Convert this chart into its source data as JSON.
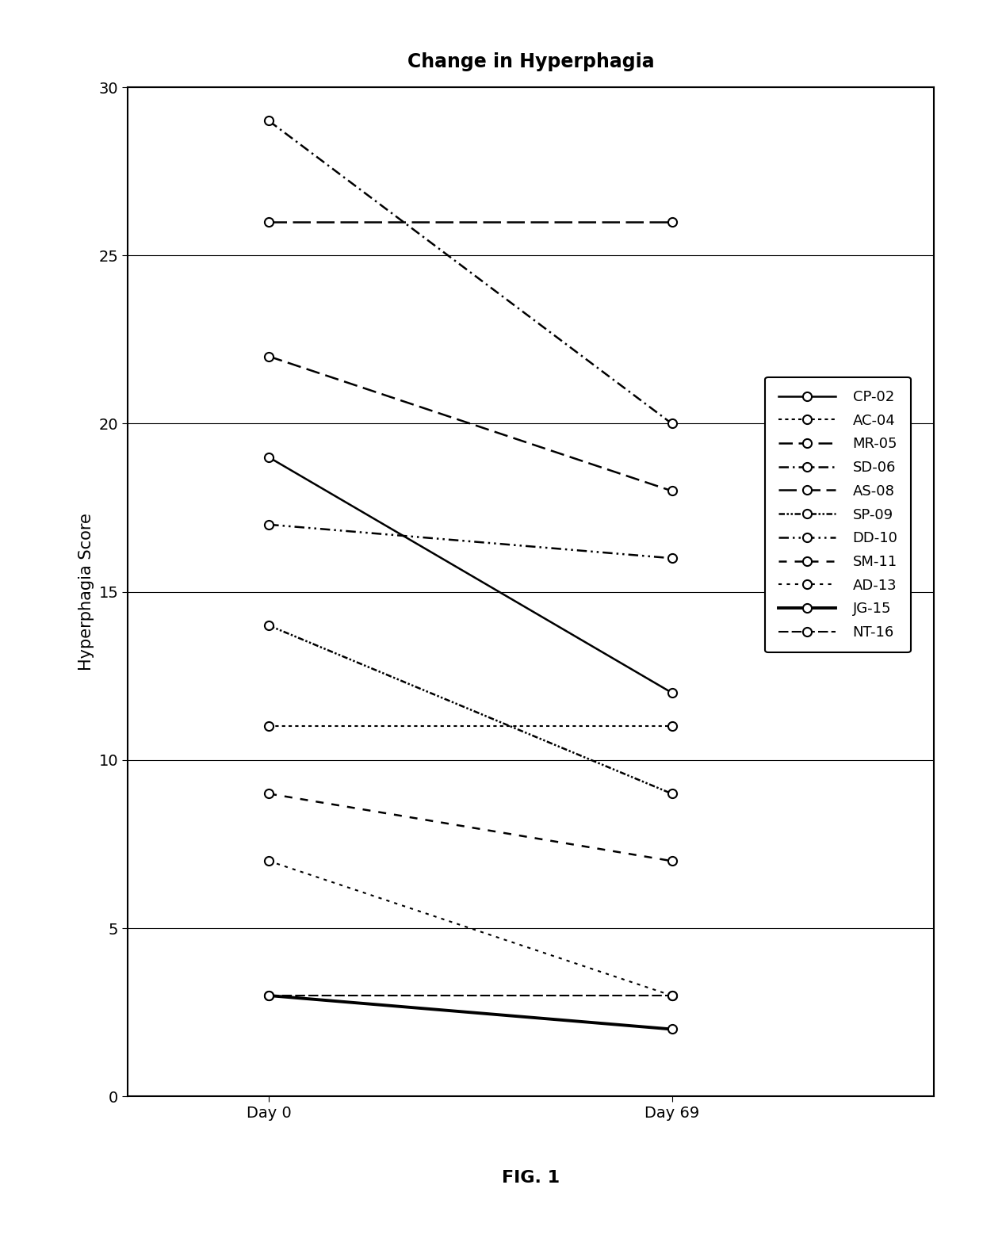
{
  "title": "Change in Hyperphagia",
  "xlabel_day0": "Day 0",
  "xlabel_day69": "Day 69",
  "ylabel": "Hyperphagia Score",
  "fig_label": "FIG. 1",
  "ylim": [
    0,
    30
  ],
  "yticks": [
    0,
    5,
    10,
    15,
    20,
    25,
    30
  ],
  "series": [
    {
      "label": "CP-02",
      "day0": 19,
      "day69": 12
    },
    {
      "label": "AC-04",
      "day0": 11,
      "day69": 11
    },
    {
      "label": "MR-05",
      "day0": 22,
      "day69": 18
    },
    {
      "label": "SD-06",
      "day0": 29,
      "day69": 20
    },
    {
      "label": "AS-08",
      "day0": 26,
      "day69": 26
    },
    {
      "label": "SP-09",
      "day0": 14,
      "day69": 9
    },
    {
      "label": "DD-10",
      "day0": 17,
      "day69": 16
    },
    {
      "label": "SM-11",
      "day0": 9,
      "day69": 7
    },
    {
      "label": "AD-13",
      "day0": 7,
      "day69": 3
    },
    {
      "label": "JG-15",
      "day0": 3,
      "day69": 2
    },
    {
      "label": "NT-16",
      "day0": 3,
      "day69": 3
    }
  ],
  "background_color": "#ffffff",
  "title_fontsize": 17,
  "axis_label_fontsize": 15,
  "tick_fontsize": 14,
  "legend_fontsize": 13,
  "fig_label_fontsize": 16
}
